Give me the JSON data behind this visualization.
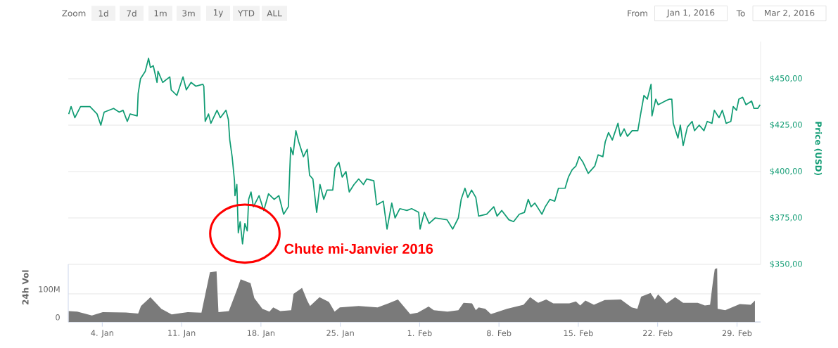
{
  "chart_data": [
    {
      "type": "line",
      "ylabel": "Price (USD)",
      "color": "#119c74",
      "grid": "y",
      "tick_labels": "y",
      "xlim": [
        "2016-01-01T00:00",
        "2016-03-02T02:00"
      ],
      "ylim": [
        350,
        470
      ],
      "yticks": [
        {
          "value": 350,
          "label": "$350,00"
        },
        {
          "value": 375,
          "label": "$375,00"
        },
        {
          "value": 400,
          "label": "$400,00"
        },
        {
          "value": 425,
          "label": "$425,00"
        },
        {
          "value": 450,
          "label": "$450,00"
        }
      ],
      "x": [
        "2016-01-01T01:00",
        "2016-01-01T06:00",
        "2016-01-01T14:00",
        "2016-01-02T02:00",
        "2016-01-02T22:00",
        "2016-01-03T13:00",
        "2016-01-03T21:00",
        "2016-01-04T04:00",
        "2016-01-05T00:00",
        "2016-01-05T12:00",
        "2016-01-05T20:00",
        "2016-01-06T05:00",
        "2016-01-06T11:00",
        "2016-01-07T02:00",
        "2016-01-07T04:00",
        "2016-01-07T09:00",
        "2016-01-07T19:00",
        "2016-01-08T02:00",
        "2016-01-08T06:00",
        "2016-01-08T12:00",
        "2016-01-08T20:00",
        "2016-01-08T22:00",
        "2016-01-09T08:00",
        "2016-01-09T23:00",
        "2016-01-10T02:00",
        "2016-01-10T14:00",
        "2016-01-11T03:00",
        "2016-01-11T10:00",
        "2016-01-11T20:00",
        "2016-01-12T06:00",
        "2016-01-12T21:00",
        "2016-01-12T23:00",
        "2016-01-13T02:00",
        "2016-01-13T09:00",
        "2016-01-13T14:00",
        "2016-01-14T03:00",
        "2016-01-14T10:00",
        "2016-01-14T22:00",
        "2016-01-15T03:00",
        "2016-01-15T06:00",
        "2016-01-15T11:00",
        "2016-01-15T16:00",
        "2016-01-15T17:00",
        "2016-01-15T21:00",
        "2016-01-16T00:00",
        "2016-01-16T04:00",
        "2016-01-16T09:00",
        "2016-01-16T14:00",
        "2016-01-16T19:00",
        "2016-01-16T22:00",
        "2016-01-17T03:00",
        "2016-01-17T08:00",
        "2016-01-17T20:00",
        "2016-01-18T06:00",
        "2016-01-18T16:00",
        "2016-01-19T04:00",
        "2016-01-19T14:00",
        "2016-01-20T00:00",
        "2016-01-20T10:00",
        "2016-01-20T15:00",
        "2016-01-20T20:00",
        "2016-01-21T02:00",
        "2016-01-21T08:00",
        "2016-01-21T18:00",
        "2016-01-22T02:00",
        "2016-01-22T07:00",
        "2016-01-22T14:00",
        "2016-01-22T22:00",
        "2016-01-23T05:00",
        "2016-01-23T13:00",
        "2016-01-23T20:00",
        "2016-01-24T08:00",
        "2016-01-24T13:00",
        "2016-01-24T21:00",
        "2016-01-25T04:00",
        "2016-01-25T12:00",
        "2016-01-25T19:00",
        "2016-01-26T05:00",
        "2016-01-26T15:00",
        "2016-01-27T01:00",
        "2016-01-27T08:00",
        "2016-01-27T23:00",
        "2016-01-28T05:00",
        "2016-01-28T19:00",
        "2016-01-29T03:00",
        "2016-01-29T13:00",
        "2016-01-29T20:00",
        "2016-01-30T06:00",
        "2016-01-30T21:00",
        "2016-01-31T07:00",
        "2016-01-31T22:00",
        "2016-02-01T01:00",
        "2016-02-01T10:00",
        "2016-02-01T20:00",
        "2016-02-02T09:00",
        "2016-02-03T10:00",
        "2016-02-03T22:00",
        "2016-02-04T10:00",
        "2016-02-04T16:00",
        "2016-02-05T00:00",
        "2016-02-05T06:00",
        "2016-02-05T14:00",
        "2016-02-05T23:00",
        "2016-02-06T05:00",
        "2016-02-06T22:00",
        "2016-02-07T13:00",
        "2016-02-07T20:00",
        "2016-02-08T06:00",
        "2016-02-08T21:00",
        "2016-02-09T07:00",
        "2016-02-09T19:00",
        "2016-02-10T06:00",
        "2016-02-10T14:00",
        "2016-02-10T20:00",
        "2016-02-11T04:00",
        "2016-02-11T19:00",
        "2016-02-12T02:00",
        "2016-02-12T12:00",
        "2016-02-12T22:00",
        "2016-02-13T06:00",
        "2016-02-13T20:00",
        "2016-02-14T03:00",
        "2016-02-14T11:00",
        "2016-02-14T19:00",
        "2016-02-15T02:00",
        "2016-02-15T10:00",
        "2016-02-15T21:00",
        "2016-02-16T11:00",
        "2016-02-16T18:00",
        "2016-02-17T04:00",
        "2016-02-17T09:00",
        "2016-02-17T16:00",
        "2016-02-18T00:00",
        "2016-02-18T12:00",
        "2016-02-18T17:00",
        "2016-02-19T01:00",
        "2016-02-19T08:00",
        "2016-02-19T18:00",
        "2016-02-20T06:00",
        "2016-02-20T12:00",
        "2016-02-20T19:00",
        "2016-02-21T02:00",
        "2016-02-21T10:00",
        "2016-02-21T12:00",
        "2016-02-21T20:00",
        "2016-02-22T01:00",
        "2016-02-22T16:00",
        "2016-02-23T01:00",
        "2016-02-23T06:00",
        "2016-02-23T09:00",
        "2016-02-23T19:00",
        "2016-02-24T00:00",
        "2016-02-24T06:00",
        "2016-02-24T15:00",
        "2016-02-25T01:00",
        "2016-02-25T06:00",
        "2016-02-25T16:00",
        "2016-02-26T02:00",
        "2016-02-26T09:00",
        "2016-02-26T19:00",
        "2016-02-27T00:00",
        "2016-02-27T10:00",
        "2016-02-27T17:00",
        "2016-02-28T01:00",
        "2016-02-28T11:00",
        "2016-02-28T16:00",
        "2016-02-28T23:00",
        "2016-02-29T04:00",
        "2016-02-29T12:00",
        "2016-02-29T19:00",
        "2016-03-01T07:00",
        "2016-03-01T12:00",
        "2016-03-01T20:00",
        "2016-03-02T01:00"
      ],
      "values": [
        431,
        435,
        429,
        435,
        435,
        431,
        425,
        432,
        434,
        432,
        433,
        427,
        431,
        430,
        442,
        450,
        454,
        461,
        456,
        457,
        448,
        454,
        448,
        451,
        444,
        441,
        451,
        444,
        448,
        446,
        447,
        446,
        427,
        431,
        426,
        433,
        429,
        433,
        428,
        417,
        408,
        395,
        387,
        393,
        367,
        373,
        361,
        372,
        368,
        385,
        389,
        381,
        387,
        379,
        388,
        385,
        387,
        377,
        381,
        413,
        409,
        422,
        416,
        408,
        412,
        398,
        396,
        378,
        393,
        385,
        390,
        390,
        402,
        405,
        397,
        400,
        389,
        393,
        396,
        393,
        396,
        395,
        382,
        384,
        369,
        383,
        375,
        380,
        379,
        380,
        378,
        369,
        378,
        372,
        375,
        374,
        369,
        375,
        385,
        391,
        386,
        390,
        386,
        376,
        377,
        381,
        376,
        379,
        374,
        373,
        377,
        378,
        385,
        381,
        383,
        377,
        381,
        385,
        384,
        391,
        391,
        397,
        401,
        403,
        408,
        405,
        399,
        403,
        409,
        408,
        416,
        421,
        417,
        426,
        419,
        423,
        419,
        422,
        422,
        431,
        441,
        439,
        447,
        430,
        439,
        436,
        438,
        439,
        439,
        426,
        418,
        425,
        414,
        424,
        427,
        422,
        425,
        422,
        427,
        426,
        433,
        429,
        433,
        426,
        427,
        435,
        433,
        439,
        440,
        436,
        438,
        434,
        434,
        436
      ],
      "annotations": [
        {
          "text": "Chute mi-Janvier 2016",
          "x": "2016-01-16T09:00",
          "y": 361
        },
        "Zoom",
        "1d",
        "7d",
        "1m",
        "3m",
        "1y",
        "YTD",
        "ALL",
        "From",
        "Jan 1, 2016",
        "To",
        "Mar 2, 2016"
      ]
    },
    {
      "type": "area",
      "ylabel": "24h Vol",
      "color": "#7a7a7a",
      "grid": "y",
      "xlim": [
        "2016-01-01T00:00",
        "2016-03-02T02:00"
      ],
      "ylim": [
        0,
        205
      ],
      "yticks": [
        0,
        {
          "value": 100,
          "label": "100M"
        }
      ],
      "xticks": [
        {
          "value": "2016-01-04",
          "label": "4. Jan"
        },
        {
          "value": "2016-01-11",
          "label": "11. Jan"
        },
        {
          "value": "2016-01-18",
          "label": "18. Jan"
        },
        {
          "value": "2016-01-25",
          "label": "25. Jan"
        },
        {
          "value": "2016-02-01",
          "label": "1. Feb"
        },
        {
          "value": "2016-02-08",
          "label": "8. Feb"
        },
        {
          "value": "2016-02-15",
          "label": "15. Feb"
        },
        {
          "value": "2016-02-22",
          "label": "22. Feb"
        },
        {
          "value": "2016-02-29",
          "label": "29. Feb"
        }
      ],
      "x": [
        "2016-01-01T01:00",
        "2016-01-01T19:00",
        "2016-01-03T02:00",
        "2016-01-04T01:00",
        "2016-01-06T02:00",
        "2016-01-07T04:00",
        "2016-01-07T10:00",
        "2016-01-08T06:00",
        "2016-01-09T05:00",
        "2016-01-10T03:00",
        "2016-01-11T13:00",
        "2016-01-12T18:00",
        "2016-01-13T03:00",
        "2016-01-13T12:00",
        "2016-01-14T02:00",
        "2016-01-14T06:00",
        "2016-01-15T04:00",
        "2016-01-15T21:00",
        "2016-01-16T05:00",
        "2016-01-17T02:00",
        "2016-01-17T10:00",
        "2016-01-18T03:00",
        "2016-01-18T18:00",
        "2016-01-19T02:00",
        "2016-01-19T17:00",
        "2016-01-20T16:00",
        "2016-01-20T21:00",
        "2016-01-21T15:00",
        "2016-01-22T02:00",
        "2016-01-22T08:00",
        "2016-01-23T04:00",
        "2016-01-24T00:00",
        "2016-01-24T12:00",
        "2016-01-24T23:00",
        "2016-01-26T15:00",
        "2016-01-28T07:00",
        "2016-01-29T06:00",
        "2016-01-30T02:00",
        "2016-01-31T04:00",
        "2016-01-31T20:00",
        "2016-02-01T19:00",
        "2016-02-02T06:00",
        "2016-02-03T11:00",
        "2016-02-04T10:00",
        "2016-02-04T21:00",
        "2016-02-05T15:00",
        "2016-02-05T23:00",
        "2016-02-06T05:00",
        "2016-02-06T19:00",
        "2016-02-07T07:00",
        "2016-02-08T17:00",
        "2016-02-10T04:00",
        "2016-02-10T18:00",
        "2016-02-11T11:00",
        "2016-02-12T04:00",
        "2016-02-12T19:00",
        "2016-02-14T05:00",
        "2016-02-14T19:00",
        "2016-02-15T04:00",
        "2016-02-15T15:00",
        "2016-02-16T09:00",
        "2016-02-17T08:00",
        "2016-02-18T18:00",
        "2016-02-19T17:00",
        "2016-02-20T05:00",
        "2016-02-20T13:00",
        "2016-02-21T09:00",
        "2016-02-21T18:00",
        "2016-02-22T01:00",
        "2016-02-22T19:00",
        "2016-02-23T13:00",
        "2016-02-24T06:00",
        "2016-02-25T13:00",
        "2016-02-26T04:00",
        "2016-02-26T15:00",
        "2016-02-26T21:00",
        "2016-02-27T01:00",
        "2016-02-27T06:00",
        "2016-02-27T07:00",
        "2016-02-27T23:00",
        "2016-02-29T06:00",
        "2016-03-01T05:00",
        "2016-03-01T14:00"
      ],
      "values": [
        39,
        37,
        23,
        35,
        34,
        30,
        57,
        88,
        47,
        27,
        35,
        33,
        105,
        177,
        180,
        35,
        39,
        114,
        152,
        138,
        85,
        47,
        37,
        52,
        39,
        42,
        100,
        121,
        76,
        57,
        88,
        71,
        37,
        52,
        57,
        52,
        66,
        80,
        28,
        33,
        55,
        42,
        37,
        42,
        68,
        66,
        42,
        52,
        47,
        28,
        47,
        61,
        88,
        68,
        80,
        66,
        66,
        73,
        59,
        76,
        61,
        78,
        80,
        52,
        47,
        90,
        103,
        80,
        98,
        66,
        88,
        68,
        68,
        59,
        61,
        143,
        188,
        191,
        47,
        42,
        64,
        61,
        76
      ]
    }
  ]
}
